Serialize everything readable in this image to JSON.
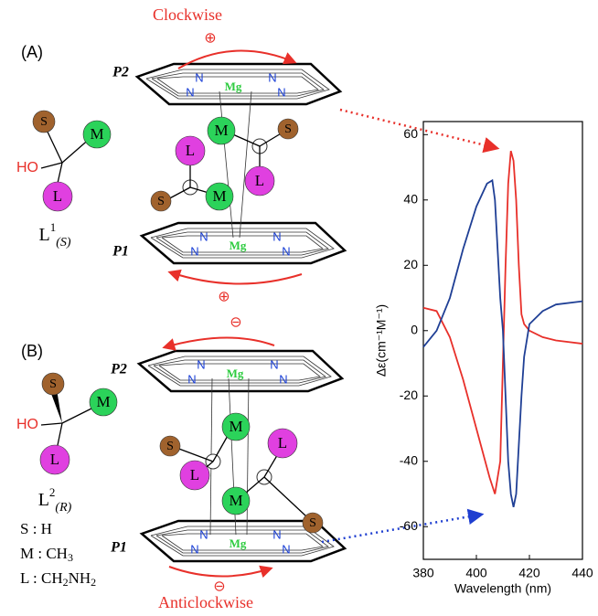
{
  "chart_data": {
    "type": "line",
    "x_label": "Wavelength (nm)",
    "y_label": "Δε(cm⁻¹M⁻¹)",
    "xlim": [
      380,
      440
    ],
    "xticks": [
      380,
      400,
      420,
      440
    ],
    "ylim": [
      -70,
      64
    ],
    "yticks": [
      -60,
      -40,
      -20,
      0,
      20,
      40,
      60
    ],
    "series": [
      {
        "name": "(A)",
        "color": "#e8302a",
        "x": [
          380,
          385,
          390,
          395,
          400,
          405,
          407,
          409,
          410,
          411,
          412,
          413,
          414,
          415,
          416,
          417,
          418,
          420,
          425,
          430,
          440
        ],
        "values": [
          7,
          6,
          -2,
          -15,
          -30,
          -45,
          -50,
          -40,
          -10,
          20,
          45,
          55,
          52,
          40,
          20,
          5,
          2,
          0,
          -2,
          -3,
          -4
        ]
      },
      {
        "name": "(B)",
        "color": "#1f3f95",
        "x": [
          380,
          385,
          390,
          395,
          400,
          404,
          406,
          407,
          408,
          409,
          410,
          411,
          412,
          413,
          414,
          415,
          416,
          417,
          418,
          420,
          425,
          430,
          440
        ],
        "values": [
          -5,
          0,
          10,
          25,
          38,
          45,
          46,
          40,
          25,
          10,
          0,
          -20,
          -40,
          -50,
          -54,
          -50,
          -35,
          -20,
          -8,
          2,
          6,
          8,
          9
        ]
      }
    ]
  },
  "diagram": {
    "panel_a": "(A)",
    "panel_b": "(B)",
    "clockwise": "Clockwise",
    "anticlockwise": "Anticlockwise",
    "plus": "⊕",
    "minus": "⊖",
    "p2": "P2",
    "p1": "P1",
    "nitrogen": "N",
    "magnesium": "Mg",
    "s": "S",
    "m": "M",
    "l": "L",
    "ho": "HO",
    "ligand_a": {
      "base": "L",
      "sup": "1",
      "sub": "(S)"
    },
    "ligand_b": {
      "base": "L",
      "sup": "2",
      "sub": "(R)"
    },
    "key": [
      {
        "text": "S : H"
      },
      {
        "text": "M : CH",
        "sub": "3"
      },
      {
        "text": "L : CH",
        "sub": "2",
        "tail": "NH",
        "sub2": "2"
      }
    ]
  }
}
